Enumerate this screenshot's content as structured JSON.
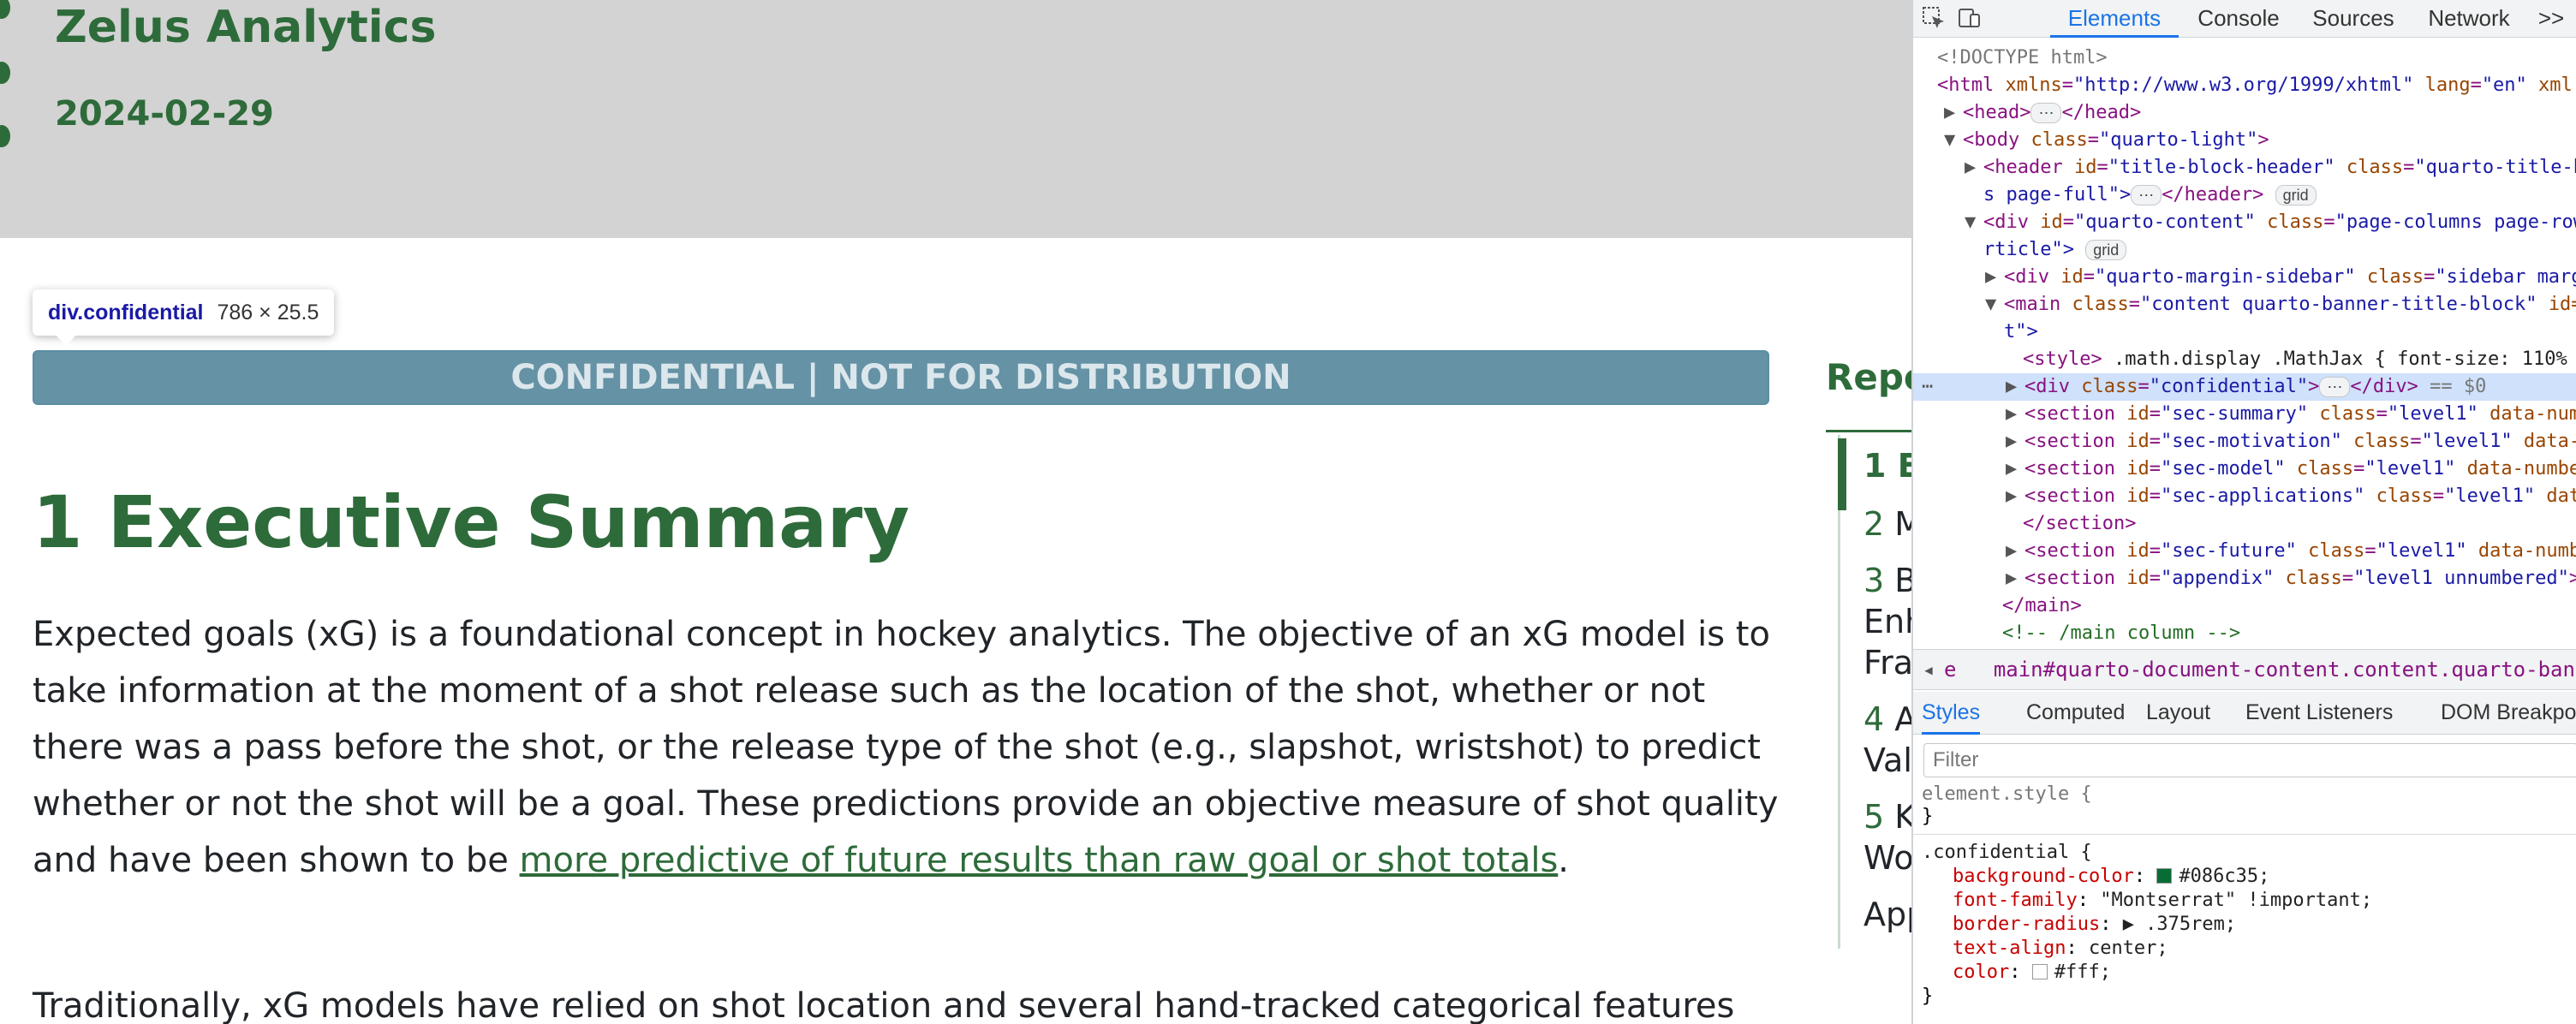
{
  "page": {
    "title": "Zelus Analytics",
    "date": "2024-02-29",
    "tooltip": {
      "selector": "div.confidential",
      "size": "786 × 25.5"
    },
    "banner": "CONFIDENTIAL | NOT FOR DISTRIBUTION",
    "heading": "1 Executive Summary",
    "paragraph1_before_link": "Expected goals (xG) is a foundational concept in hockey analytics. The objective of an xG model is to take information at the moment of a shot release such as the location of the shot, whether or not there was a pass before the shot, or the release type of the shot (e.g., slapshot, wristshot) to predict whether or not the shot will be a goal. These predictions provide an objective measure of shot quality and have been shown to be ",
    "paragraph1_link": "more predictive of future results than raw goal or shot totals",
    "paragraph1_after_link": ".",
    "paragraph2": "Traditionally, xG models have relied on shot location and several hand-tracked categorical features",
    "toc": {
      "title": "Repo",
      "items": [
        {
          "num": "1",
          "text": "E"
        },
        {
          "num": "2",
          "text": "M"
        },
        {
          "num": "3",
          "text": "B"
        },
        {
          "num": "",
          "text": "Enh"
        },
        {
          "num": "",
          "text": "Fra"
        },
        {
          "num": "4",
          "text": "A"
        },
        {
          "num": "",
          "text": "Val"
        },
        {
          "num": "5",
          "text": "K"
        },
        {
          "num": "",
          "text": "Wo"
        },
        {
          "num": "",
          "text": "App"
        }
      ]
    }
  },
  "devtools": {
    "tabs": [
      "Elements",
      "Console",
      "Sources",
      "Network",
      ">>"
    ],
    "active_tab": "Elements",
    "dom": {
      "doctype": "<!DOCTYPE html>",
      "html_open": "<html",
      "html_xmlns_attr": "xmlns",
      "html_xmlns_val": "\"http://www.w3.org/1999/xhtml\"",
      "html_lang_attr": "lang",
      "html_lang_val": "\"en\"",
      "html_xml_attr": "xml",
      "head": "<head>",
      "head_close": "</head>",
      "body_open": "<body",
      "body_class_attr": "class",
      "body_class_val": "\"quarto-light\"",
      "header_open": "<header",
      "header_id_attr": "id",
      "header_id_val": "\"title-block-header\"",
      "header_class_attr": "class",
      "header_class_val": "\"quarto-title-b",
      "header_cont": "s page-full\">",
      "header_close": "</header>",
      "grid_badge": "grid",
      "div_qc_open": "<div",
      "div_qc_id_attr": "id",
      "div_qc_id_val": "\"quarto-content\"",
      "div_qc_class_attr": "class",
      "div_qc_class_val": "\"page-columns page-row",
      "div_qc_cont": "rticle\">",
      "div_ms_open": "<div",
      "div_ms_id_attr": "id",
      "div_ms_id_val": "\"quarto-margin-sidebar\"",
      "div_ms_class_attr": "class",
      "div_ms_class_val": "\"sidebar marg",
      "main_open": "<main",
      "main_class_attr": "class",
      "main_class_val": "\"content quarto-banner-title-block\"",
      "main_id_attr": "id=",
      "main_cont": "t\">",
      "style_open": "<style>",
      "style_text": " .math.display .MathJax { font-size: 110%",
      "conf_open": "<div",
      "conf_class_attr": "class",
      "conf_class_val": "\"confidential\"",
      "conf_close": "</div>",
      "conf_eq": "== $0",
      "sections": [
        {
          "id_val": "\"sec-summary\"",
          "class_val": "\"level1\"",
          "tail": "data-num"
        },
        {
          "id_val": "\"sec-motivation\"",
          "class_val": "\"level1\"",
          "tail": "data-"
        },
        {
          "id_val": "\"sec-model\"",
          "class_val": "\"level1\"",
          "tail": "data-numbe"
        },
        {
          "id_val": "\"sec-applications\"",
          "class_val": "\"level1\"",
          "tail": "dat"
        }
      ],
      "section_open": "<section",
      "section_id_attr": "id",
      "section_class_attr": "class",
      "section_close": "</section>",
      "sections2": [
        {
          "id_val": "\"sec-future\"",
          "class_val": "\"level1\"",
          "tail": "data-numb"
        },
        {
          "id_val": "\"appendix\"",
          "class_val": "\"level1 unnumbered\"",
          "tail": ">"
        }
      ],
      "main_close": "</main>",
      "comment": "<!-- /main column -->"
    },
    "breadcrumb": {
      "left": "e",
      "path": "main#quarto-document-content.content.quarto-banner-title"
    },
    "styles_tabs": [
      "Styles",
      "Computed",
      "Layout",
      "Event Listeners",
      "DOM Breakpoi"
    ],
    "active_styles_tab": "Styles",
    "filter_placeholder": "Filter",
    "rules": {
      "element_style": "element.style {",
      "close": "}",
      "confidential_selector": ".confidential {",
      "declarations": [
        {
          "prop": "background-color",
          "value": "#086c35;",
          "swatch": "#086c35"
        },
        {
          "prop": "font-family",
          "value": "\"Montserrat\" !important;"
        },
        {
          "prop": "border-radius",
          "value": "▶ .375rem;"
        },
        {
          "prop": "text-align",
          "value": "center;"
        },
        {
          "prop": "color",
          "value": "#fff;",
          "swatch": "#ffffff"
        }
      ]
    }
  }
}
